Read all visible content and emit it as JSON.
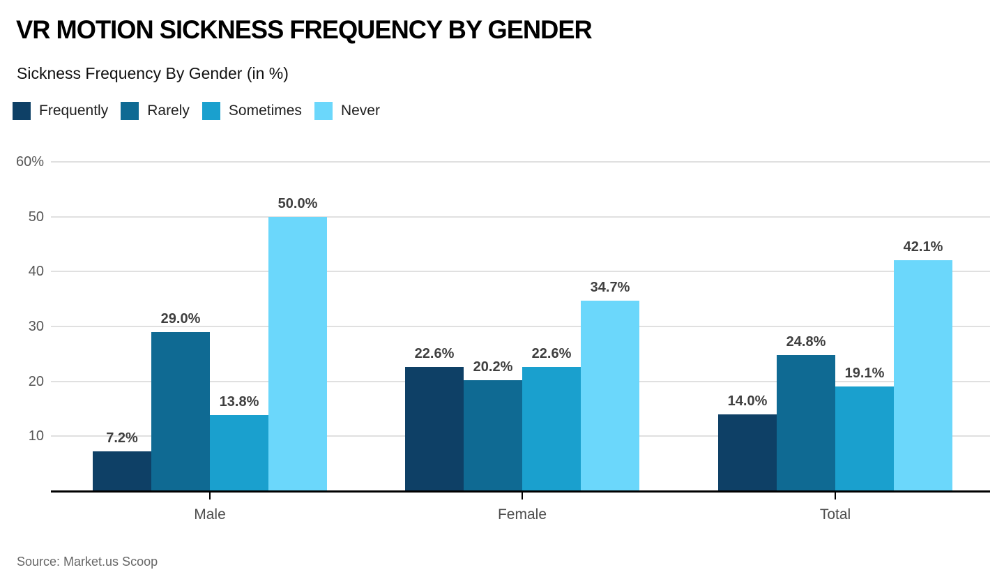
{
  "header": {
    "title": "VR MOTION SICKNESS FREQUENCY BY GENDER",
    "subtitle": "Sickness Frequency By Gender (in %)"
  },
  "footer": {
    "source": "Source: Market.us Scoop"
  },
  "colors": {
    "frequently": "#0e4066",
    "rarely": "#0f6a93",
    "sometimes": "#1aa0ce",
    "never": "#6bd7fb",
    "gridline": "#e0e0e0",
    "axis": "#000000",
    "value_label": "#3f3f3f",
    "axis_label": "#565656"
  },
  "chart_data": {
    "type": "bar",
    "title": "VR MOTION SICKNESS FREQUENCY BY GENDER",
    "subtitle": "Sickness Frequency By Gender (in %)",
    "categories": [
      "Male",
      "Female",
      "Total"
    ],
    "series": [
      {
        "name": "Frequently",
        "color": "#0e4066",
        "values": [
          7.2,
          22.6,
          14.0
        ]
      },
      {
        "name": "Rarely",
        "color": "#0f6a93",
        "values": [
          29.0,
          20.2,
          24.8
        ]
      },
      {
        "name": "Sometimes",
        "color": "#1aa0ce",
        "values": [
          13.8,
          22.6,
          19.1
        ]
      },
      {
        "name": "Never",
        "color": "#6bd7fb",
        "values": [
          50.0,
          34.7,
          42.1
        ]
      }
    ],
    "value_label_format": "one_decimal_percent",
    "xlabel": "",
    "ylabel": "",
    "ylim": [
      0,
      60
    ],
    "grid": true,
    "legend_position": "top",
    "yticks": [
      {
        "value": 60,
        "label": "60%"
      },
      {
        "value": 50,
        "label": "50"
      },
      {
        "value": 40,
        "label": "40"
      },
      {
        "value": 30,
        "label": "30"
      },
      {
        "value": 20,
        "label": "20"
      },
      {
        "value": 10,
        "label": "10"
      }
    ]
  }
}
